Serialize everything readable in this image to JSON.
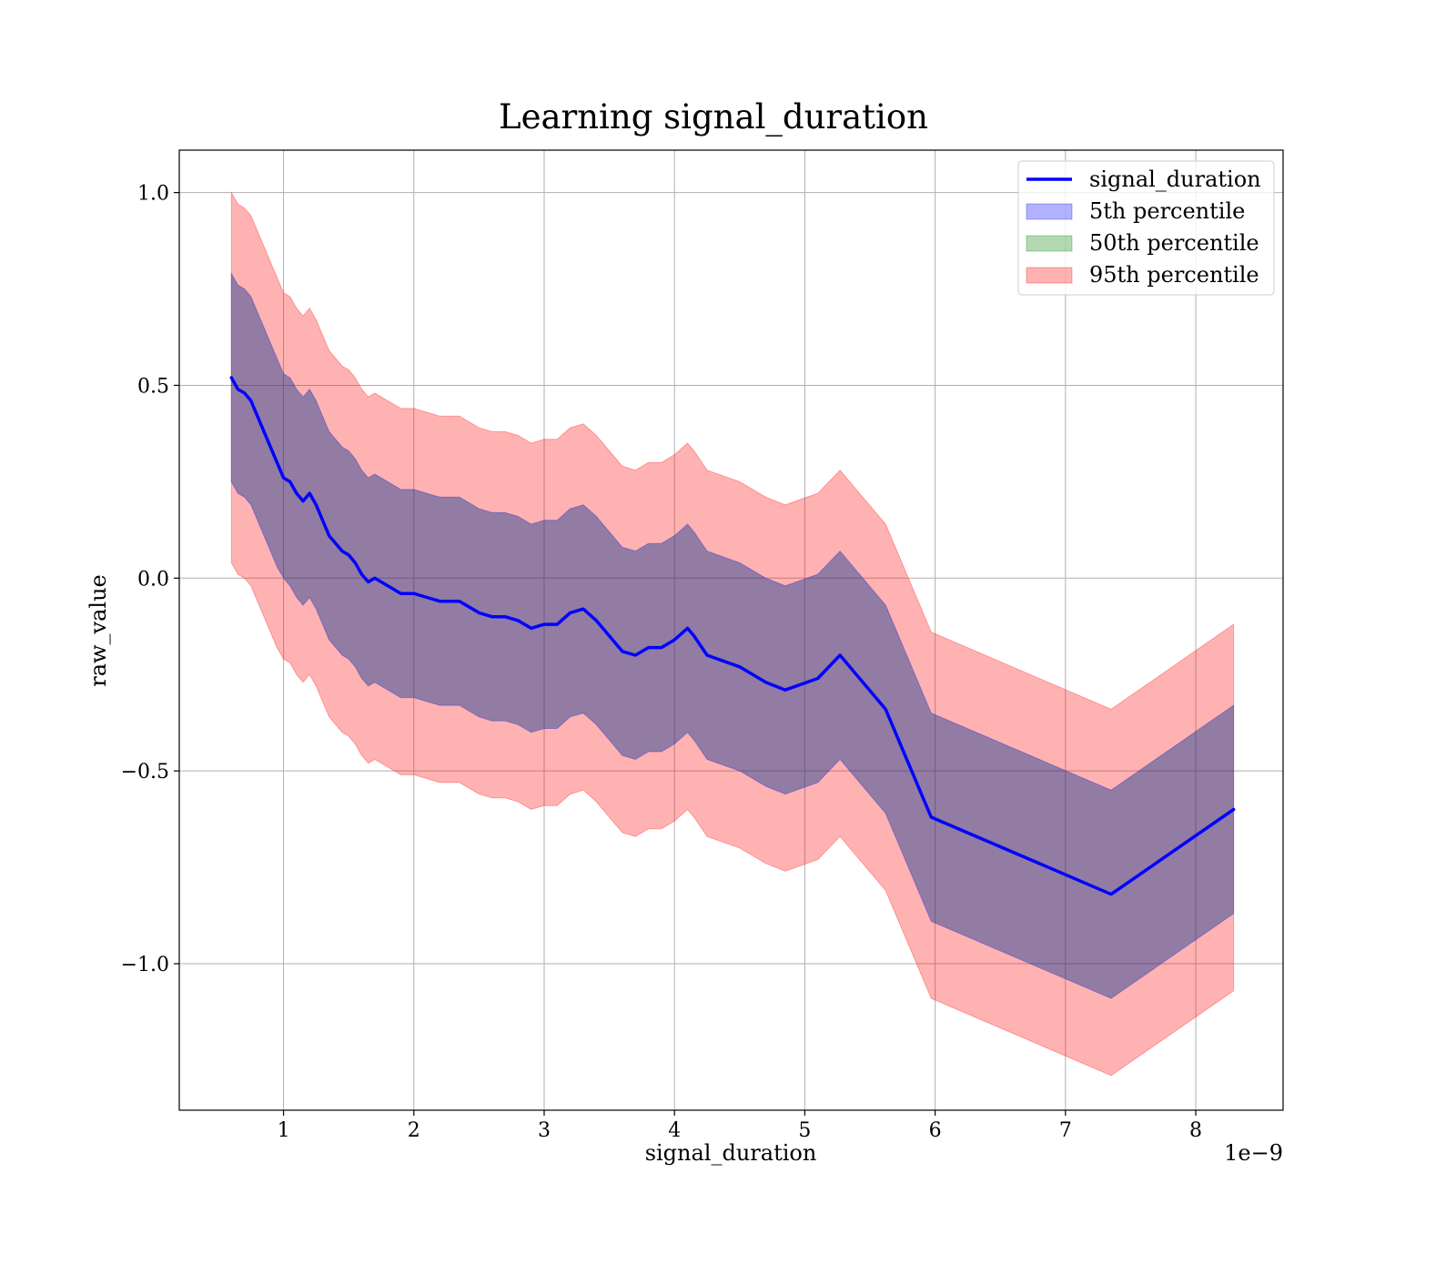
{
  "chart_data": {
    "type": "line",
    "title": "Learning signal_duration",
    "xlabel": "signal_duration",
    "ylabel": "raw_value",
    "x_offset_label": "1e−9",
    "xlim": [
      0.2,
      8.67
    ],
    "ylim": [
      -1.38,
      1.11
    ],
    "grid": true,
    "legend_position": "top-right",
    "x_ticks": [
      {
        "value": 1,
        "label": "1"
      },
      {
        "value": 2,
        "label": "2"
      },
      {
        "value": 3,
        "label": "3"
      },
      {
        "value": 4,
        "label": "4"
      },
      {
        "value": 5,
        "label": "5"
      },
      {
        "value": 6,
        "label": "6"
      },
      {
        "value": 7,
        "label": "7"
      },
      {
        "value": 8,
        "label": "8"
      }
    ],
    "y_ticks": [
      {
        "value": -1.0,
        "label": "−1.0"
      },
      {
        "value": -0.5,
        "label": "−0.5"
      },
      {
        "value": 0.0,
        "label": "0.0"
      },
      {
        "value": 0.5,
        "label": "0.5"
      },
      {
        "value": 1.0,
        "label": "1.0"
      }
    ],
    "legend": [
      {
        "label": "signal_duration",
        "kind": "line",
        "color": "#0000ff"
      },
      {
        "label": "5th percentile",
        "kind": "band",
        "color": "#0000ff"
      },
      {
        "label": "50th percentile",
        "kind": "band",
        "color": "#008000"
      },
      {
        "label": "95th percentile",
        "kind": "band",
        "color": "#ff0000"
      }
    ],
    "colors": {
      "line": "#0000ff",
      "band_5th": "#0000ff",
      "band_50th": "#008000",
      "band_95th": "#ff0000"
    },
    "x": [
      0.6,
      0.65,
      0.7,
      0.75,
      0.8,
      0.85,
      0.9,
      0.95,
      1.0,
      1.05,
      1.1,
      1.15,
      1.2,
      1.25,
      1.3,
      1.35,
      1.4,
      1.45,
      1.5,
      1.55,
      1.6,
      1.65,
      1.7,
      1.8,
      1.9,
      2.0,
      2.1,
      2.2,
      2.35,
      2.5,
      2.6,
      2.7,
      2.8,
      2.9,
      3.0,
      3.1,
      3.2,
      3.3,
      3.4,
      3.5,
      3.6,
      3.7,
      3.8,
      3.9,
      4.0,
      4.1,
      4.15,
      4.25,
      4.5,
      4.7,
      4.85,
      5.1,
      5.27,
      5.62,
      5.97,
      7.35,
      8.29
    ],
    "series": [
      {
        "name": "signal_duration",
        "values": [
          0.52,
          0.49,
          0.48,
          0.46,
          0.42,
          0.38,
          0.34,
          0.3,
          0.26,
          0.25,
          0.22,
          0.2,
          0.22,
          0.19,
          0.15,
          0.11,
          0.09,
          0.07,
          0.06,
          0.04,
          0.01,
          -0.01,
          0.0,
          -0.02,
          -0.04,
          -0.04,
          -0.05,
          -0.06,
          -0.06,
          -0.09,
          -0.1,
          -0.1,
          -0.11,
          -0.13,
          -0.12,
          -0.12,
          -0.09,
          -0.08,
          -0.11,
          -0.15,
          -0.19,
          -0.2,
          -0.18,
          -0.18,
          -0.16,
          -0.13,
          -0.15,
          -0.2,
          -0.23,
          -0.27,
          -0.29,
          -0.26,
          -0.2,
          -0.34,
          -0.62,
          -0.82,
          -0.6
        ]
      }
    ],
    "bands": [
      {
        "name": "5th percentile",
        "lower": [
          0.25,
          0.22,
          0.21,
          0.19,
          0.15,
          0.11,
          0.07,
          0.03,
          0.0,
          -0.02,
          -0.05,
          -0.07,
          -0.05,
          -0.08,
          -0.12,
          -0.16,
          -0.18,
          -0.2,
          -0.21,
          -0.23,
          -0.26,
          -0.28,
          -0.27,
          -0.29,
          -0.31,
          -0.31,
          -0.32,
          -0.33,
          -0.33,
          -0.36,
          -0.37,
          -0.37,
          -0.38,
          -0.4,
          -0.39,
          -0.39,
          -0.36,
          -0.35,
          -0.38,
          -0.42,
          -0.46,
          -0.47,
          -0.45,
          -0.45,
          -0.43,
          -0.4,
          -0.42,
          -0.47,
          -0.5,
          -0.54,
          -0.56,
          -0.53,
          -0.47,
          -0.61,
          -0.89,
          -1.09,
          -0.87
        ],
        "upper": [
          0.79,
          0.76,
          0.75,
          0.73,
          0.69,
          0.65,
          0.61,
          0.57,
          0.53,
          0.52,
          0.49,
          0.47,
          0.49,
          0.46,
          0.42,
          0.38,
          0.36,
          0.34,
          0.33,
          0.31,
          0.28,
          0.26,
          0.27,
          0.25,
          0.23,
          0.23,
          0.22,
          0.21,
          0.21,
          0.18,
          0.17,
          0.17,
          0.16,
          0.14,
          0.15,
          0.15,
          0.18,
          0.19,
          0.16,
          0.12,
          0.08,
          0.07,
          0.09,
          0.09,
          0.11,
          0.14,
          0.12,
          0.07,
          0.04,
          0.0,
          -0.02,
          0.01,
          0.07,
          -0.07,
          -0.35,
          -0.55,
          -0.33
        ]
      },
      {
        "name": "95th percentile",
        "lower": [
          0.04,
          0.01,
          0.0,
          -0.02,
          -0.06,
          -0.1,
          -0.14,
          -0.18,
          -0.21,
          -0.22,
          -0.25,
          -0.27,
          -0.25,
          -0.28,
          -0.32,
          -0.36,
          -0.38,
          -0.4,
          -0.41,
          -0.43,
          -0.46,
          -0.48,
          -0.47,
          -0.49,
          -0.51,
          -0.51,
          -0.52,
          -0.53,
          -0.53,
          -0.56,
          -0.57,
          -0.57,
          -0.58,
          -0.6,
          -0.59,
          -0.59,
          -0.56,
          -0.55,
          -0.58,
          -0.62,
          -0.66,
          -0.67,
          -0.65,
          -0.65,
          -0.63,
          -0.6,
          -0.62,
          -0.67,
          -0.7,
          -0.74,
          -0.76,
          -0.73,
          -0.67,
          -0.81,
          -1.09,
          -1.29,
          -1.07
        ],
        "upper": [
          1.0,
          0.97,
          0.96,
          0.94,
          0.9,
          0.86,
          0.82,
          0.78,
          0.74,
          0.73,
          0.7,
          0.68,
          0.7,
          0.67,
          0.63,
          0.59,
          0.57,
          0.55,
          0.54,
          0.52,
          0.49,
          0.47,
          0.48,
          0.46,
          0.44,
          0.44,
          0.43,
          0.42,
          0.42,
          0.39,
          0.38,
          0.38,
          0.37,
          0.35,
          0.36,
          0.36,
          0.39,
          0.4,
          0.37,
          0.33,
          0.29,
          0.28,
          0.3,
          0.3,
          0.32,
          0.35,
          0.33,
          0.28,
          0.25,
          0.21,
          0.19,
          0.22,
          0.28,
          0.14,
          -0.14,
          -0.34,
          -0.12
        ]
      }
    ]
  }
}
